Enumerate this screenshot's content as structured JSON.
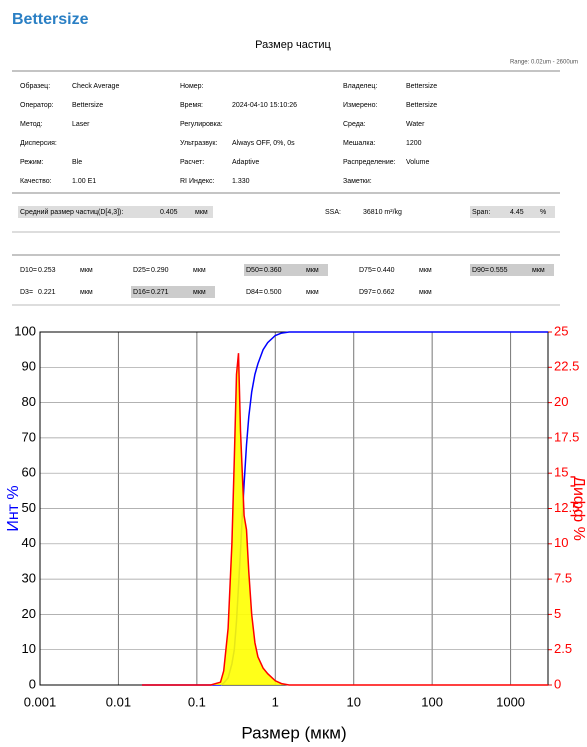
{
  "header": {
    "brand": "Bettersize",
    "title": "Размер частиц",
    "range": "Range: 0.02um - 2600um"
  },
  "info": [
    [
      {
        "label": "Образец:",
        "value": "Check Average"
      },
      {
        "label": "Оператор:",
        "value": "Bettersize"
      },
      {
        "label": "Метод:",
        "value": "Laser"
      },
      {
        "label": "Дисперсия:"
      },
      {
        "label": "Режим:",
        "value": "Ble"
      },
      {
        "label": "Качество:",
        "value": "1.00 E1"
      }
    ],
    [
      {
        "label": "Номер:"
      },
      {
        "label": "Время:",
        "value": "2024-04-10 15:10:26"
      },
      {
        "label": "Регулировка:"
      },
      {
        "label": "Ультразвук:",
        "value": "Always OFF, 0%, 0s"
      },
      {
        "label": "Расчет:",
        "value": "Adaptive"
      },
      {
        "label": "RI Индекс:",
        "value": "1.330"
      }
    ],
    [
      {
        "label": "Владелец:",
        "value": "Bettersize"
      },
      {
        "label": "Измерено:",
        "value": "Bettersize"
      },
      {
        "label": "Среда:",
        "value": "Water"
      },
      {
        "label": "Мешалка:",
        "value": "1200"
      },
      {
        "label": "Распределение:",
        "value": "Volume"
      },
      {
        "label": "Заметки:"
      }
    ]
  ],
  "summary": [
    {
      "label": "Средний размер частиц(D[4,3]):",
      "value": "0.405",
      "unit": "мкм"
    },
    {
      "label": "SSA:",
      "value": "36810 m²/kg"
    },
    {
      "label": "Span:",
      "value": "4.45",
      "unit": "%"
    }
  ],
  "percentiles": [
    [
      {
        "label": "D10=",
        "value": "0.253",
        "unit": "мкм",
        "highlight": false
      },
      {
        "label": "D25=",
        "value": "0.290",
        "unit": "мкм",
        "highlight": false
      },
      {
        "label": "D50=",
        "value": "0.360",
        "unit": "мкм",
        "highlight": true
      },
      {
        "label": "D75=",
        "value": "0.440",
        "unit": "мкм",
        "highlight": false
      },
      {
        "label": "D90=",
        "value": "0.555",
        "unit": "мкм",
        "highlight": true
      }
    ],
    [
      {
        "label": "D3=",
        "value": "0.221",
        "unit": "мкм",
        "highlight": false
      },
      {
        "label": "D16=",
        "value": "0.271",
        "unit": "мкм",
        "highlight": true
      },
      {
        "label": "D84=",
        "value": "0.500",
        "unit": "мкм",
        "highlight": false
      },
      {
        "label": "D97=",
        "value": "0.662",
        "unit": "мкм",
        "highlight": false
      }
    ]
  ],
  "chart_data": {
    "type": "line",
    "x_label": "Размер (мкм)",
    "y_label": "Инт %",
    "y2_label": "Дифф %",
    "xscale": "log",
    "xlim": [
      0.001,
      3000
    ],
    "xticks": [
      0.001,
      0.01,
      0.1,
      1,
      10,
      100,
      1000
    ],
    "ylim": [
      0,
      100
    ],
    "yticks": [
      0,
      10,
      20,
      30,
      40,
      50,
      60,
      70,
      80,
      90,
      100
    ],
    "y2lim": [
      0,
      25
    ],
    "y2ticks": [
      0,
      2.5,
      5,
      7.5,
      10,
      12.5,
      15,
      17.5,
      20,
      22.5,
      25
    ],
    "grid": true,
    "x": [
      0.02,
      0.1,
      0.15,
      0.2,
      0.22,
      0.25,
      0.28,
      0.3,
      0.32,
      0.34,
      0.36,
      0.38,
      0.4,
      0.43,
      0.46,
      0.5,
      0.55,
      0.6,
      0.7,
      0.8,
      1,
      1.2,
      1.5,
      2,
      5,
      20,
      100,
      3000
    ],
    "series": [
      {
        "name": "Инт %",
        "color": "#0000ff",
        "values": [
          0,
          0,
          0,
          0,
          0.5,
          2,
          6,
          10,
          18,
          28,
          38,
          48,
          57,
          68,
          76,
          83,
          88,
          91,
          95,
          97,
          99,
          99.7,
          100,
          100,
          100,
          100,
          100,
          100
        ]
      },
      {
        "name": "Дифф %",
        "color": "#ff0000",
        "fill": "#ffff00",
        "axis": "y2",
        "values": [
          0,
          0,
          0,
          0.2,
          1,
          4,
          10,
          16,
          22,
          23.5,
          18,
          15,
          12,
          11,
          8,
          5,
          3,
          2,
          1.2,
          0.8,
          0.3,
          0.1,
          0,
          0,
          0,
          0,
          0,
          0
        ]
      }
    ]
  }
}
